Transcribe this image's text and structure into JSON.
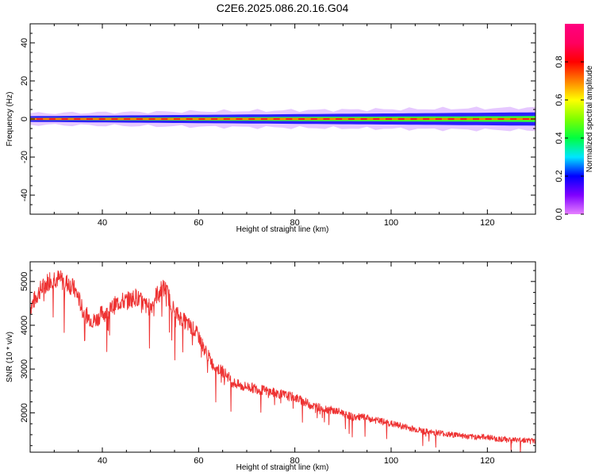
{
  "title": "C2E6.2025.086.20.16.G04",
  "chart_data": [
    {
      "type": "heatmap",
      "xlabel": "Height of straight line (km)",
      "ylabel": "Frequency (Hz)",
      "xlim": [
        25,
        130
      ],
      "ylim": [
        -50,
        50
      ],
      "xticks": [
        40,
        60,
        80,
        100,
        120
      ],
      "yticks": [
        -40,
        -20,
        0,
        20,
        40
      ],
      "colorbar": {
        "label": "Normalized spectral amplitude",
        "range": [
          0.0,
          1.0
        ],
        "ticks": [
          0.0,
          0.2,
          0.4,
          0.6,
          0.8
        ],
        "tick_labels": [
          "0.0",
          "0.2",
          "0.4",
          "0.6",
          "0.8"
        ],
        "colormap": [
          "#e680ff",
          "#8000ff",
          "#0000ff",
          "#00e6ff",
          "#00ff40",
          "#80ff00",
          "#ffff00",
          "#ff8000",
          "#ff0000",
          "#ff0060",
          "#ff0080"
        ]
      },
      "band": {
        "center_hz": 0,
        "halfwidth_hz_start": 1.5,
        "halfwidth_hz_end": 3.5,
        "outer_halfwidth_hz_start": 3.0,
        "outer_halfwidth_hz_end": 6.0,
        "peak_amplitude": 0.95
      }
    },
    {
      "type": "line",
      "xlabel": "Height of straight line (km)",
      "ylabel": "SNR (10 * v/v)",
      "xlim": [
        25,
        130
      ],
      "ylim": [
        1100,
        5450
      ],
      "xticks": [
        40,
        60,
        80,
        100,
        120
      ],
      "yticks": [
        2000,
        3000,
        4000,
        5000
      ],
      "color": "#ee3333",
      "series": [
        {
          "x": [
            25,
            26,
            27,
            28,
            29,
            30,
            31,
            32,
            33,
            34,
            35,
            36,
            37,
            38,
            39,
            40,
            41,
            42,
            43,
            44,
            45,
            46,
            47,
            48,
            49,
            50,
            51,
            52,
            53,
            54,
            55,
            56,
            57,
            58,
            59,
            60,
            61,
            62,
            63,
            64,
            65,
            66,
            67,
            68,
            69,
            70,
            72,
            74,
            76,
            78,
            80,
            82,
            84,
            86,
            88,
            90,
            92,
            94,
            96,
            98,
            100,
            102,
            104,
            106,
            108,
            110,
            112,
            114,
            116,
            118,
            120,
            122,
            124,
            126,
            128,
            130
          ],
          "y": [
            4400,
            4600,
            4800,
            4900,
            5050,
            5100,
            5050,
            5000,
            4950,
            4850,
            4650,
            4300,
            4200,
            4100,
            4150,
            4300,
            4250,
            4400,
            4500,
            4550,
            4550,
            4600,
            4650,
            4550,
            4450,
            4400,
            4650,
            4800,
            4850,
            4600,
            4300,
            4200,
            4100,
            4000,
            3900,
            3750,
            3500,
            3300,
            3100,
            3000,
            2950,
            2850,
            2700,
            2650,
            2600,
            2600,
            2550,
            2500,
            2450,
            2400,
            2350,
            2250,
            2150,
            2100,
            2050,
            2000,
            1900,
            1900,
            1850,
            1800,
            1750,
            1700,
            1650,
            1600,
            1550,
            1550,
            1500,
            1500,
            1450,
            1450,
            1450,
            1400,
            1400,
            1380,
            1380,
            1350
          ]
        }
      ]
    }
  ]
}
